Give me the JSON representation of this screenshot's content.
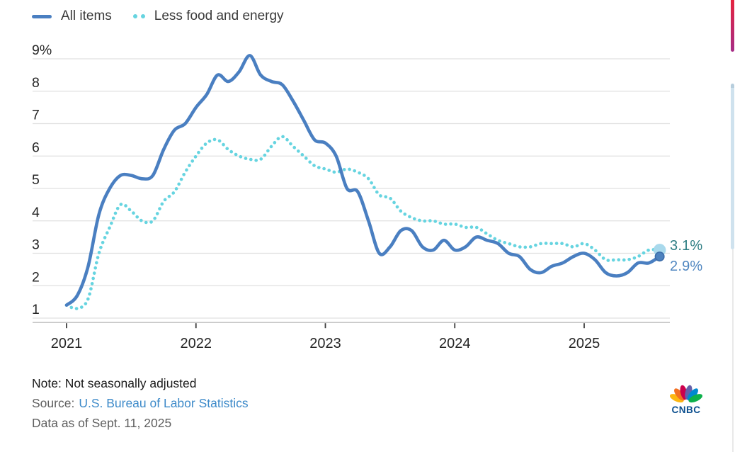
{
  "legend": {
    "items": [
      {
        "label": "All items",
        "color": "#4a7fc1",
        "style": "solid"
      },
      {
        "label": "Less food and energy",
        "color": "#66d4e0",
        "style": "dotted"
      }
    ]
  },
  "chart_data": {
    "type": "line",
    "title": "",
    "frequency": "monthly",
    "x_start": "2021-01",
    "x_end": "2025-08",
    "x_tick_labels": [
      "2021",
      "2022",
      "2023",
      "2024",
      "2025"
    ],
    "x_tick_month_index": [
      0,
      12,
      24,
      36,
      48
    ],
    "y_tick_labels": [
      "9%",
      "8",
      "7",
      "6",
      "5",
      "4",
      "3",
      "2",
      "1"
    ],
    "y_tick_values": [
      9,
      8,
      7,
      6,
      5,
      4,
      3,
      2,
      1
    ],
    "ylim": [
      0.85,
      9.3
    ],
    "grid": "horizontal",
    "legend_position": "top-left",
    "series": [
      {
        "name": "All items",
        "style": "solid",
        "color": "#4a7fc1",
        "end_label": "2.9%",
        "end_label_color": "#4f86c0",
        "end_marker_color": "#4d82bf",
        "end_marker_stroke": "#3b6ba8",
        "values": [
          1.4,
          1.7,
          2.6,
          4.2,
          5.0,
          5.4,
          5.4,
          5.3,
          5.4,
          6.2,
          6.8,
          7.0,
          7.5,
          7.9,
          8.5,
          8.3,
          8.6,
          9.1,
          8.5,
          8.3,
          8.2,
          7.7,
          7.1,
          6.5,
          6.4,
          6.0,
          5.0,
          4.9,
          4.0,
          3.0,
          3.2,
          3.7,
          3.7,
          3.2,
          3.1,
          3.4,
          3.1,
          3.2,
          3.5,
          3.4,
          3.3,
          3.0,
          2.9,
          2.5,
          2.4,
          2.6,
          2.7,
          2.9,
          3.0,
          2.8,
          2.4,
          2.3,
          2.4,
          2.7,
          2.7,
          2.9
        ]
      },
      {
        "name": "Less food and energy",
        "style": "dotted",
        "color": "#66d4e0",
        "end_label": "3.1%",
        "end_label_color": "#2e7e84",
        "end_marker_color": "#a9d9ec",
        "values": [
          1.4,
          1.3,
          1.6,
          3.0,
          3.8,
          4.5,
          4.3,
          4.0,
          4.0,
          4.6,
          4.9,
          5.5,
          6.0,
          6.4,
          6.5,
          6.2,
          6.0,
          5.9,
          5.9,
          6.3,
          6.6,
          6.3,
          6.0,
          5.7,
          5.6,
          5.5,
          5.6,
          5.5,
          5.3,
          4.8,
          4.7,
          4.3,
          4.1,
          4.0,
          4.0,
          3.9,
          3.9,
          3.8,
          3.8,
          3.6,
          3.4,
          3.3,
          3.2,
          3.2,
          3.3,
          3.3,
          3.3,
          3.2,
          3.3,
          3.1,
          2.8,
          2.8,
          2.8,
          2.9,
          3.1,
          3.1
        ]
      }
    ]
  },
  "footer": {
    "note": "Note: Not seasonally adjusted",
    "source_label": "Source:",
    "source_link_text": "U.S. Bureau of Labor Statistics",
    "data_as_of": "Data as of Sept. 11, 2025"
  },
  "branding": {
    "logo_text": "CNBC",
    "feather_colors": [
      "#fcb711",
      "#f37021",
      "#cc004c",
      "#6460aa",
      "#0089d0",
      "#0db14b"
    ],
    "wordmark_color": "#0a4e8e"
  },
  "page": {
    "background": "#ffffff",
    "grid_color": "#e0e0e0",
    "axis_color": "#c6c6c6",
    "tick_color": "#3f3f3f",
    "axis_label_color": "#262626",
    "legend_text_color": "#3a3a3a",
    "red_strip_colors": [
      "#e5243f",
      "#a62c86"
    ],
    "blue_strip_color": "#cfe2ee"
  }
}
